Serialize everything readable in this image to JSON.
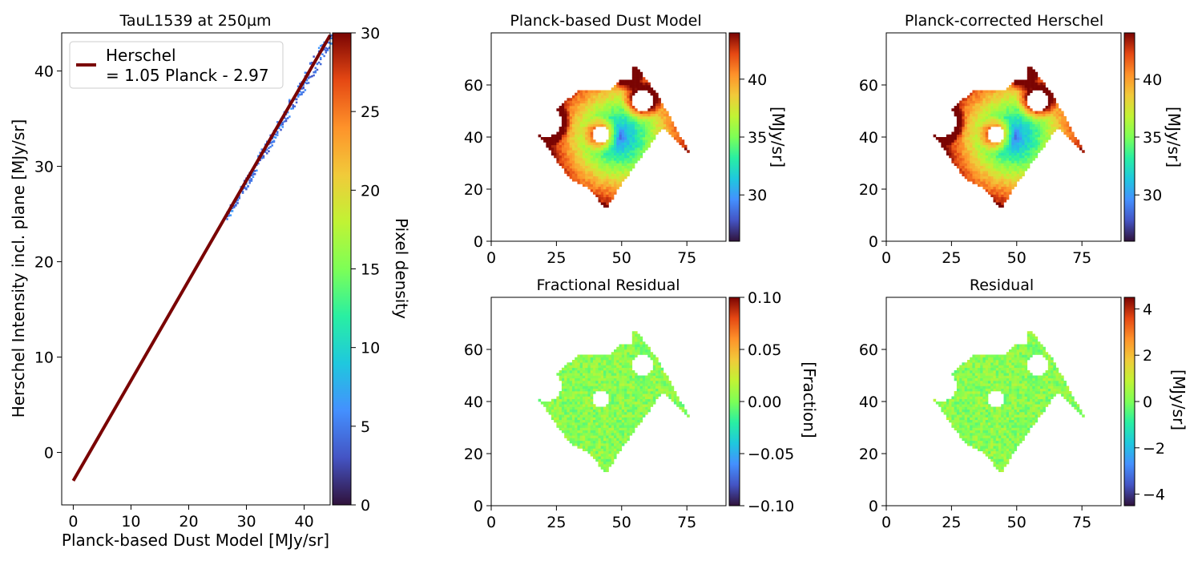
{
  "chart_data": [
    {
      "type": "scatter",
      "title": "TauL1539 at 250µm",
      "xlabel": "Planck-based Dust Model [MJy/sr]",
      "ylabel": "Herschel Intensity incl. plane [MJy/sr]",
      "xlim": [
        -2,
        44.5
      ],
      "ylim": [
        -5.5,
        44
      ],
      "xticks": [
        0,
        10,
        20,
        30,
        40
      ],
      "yticks": [
        0,
        10,
        20,
        30,
        40
      ],
      "fit": {
        "slope": 1.05,
        "intercept": -2.97,
        "x_range": [
          0,
          44.5
        ],
        "color": "#7a0403"
      },
      "legend": {
        "line1": "Herschel",
        "line2": "= 1.05 Planck - 2.97",
        "loc": "upper left"
      },
      "density_points": {
        "x_range": [
          26.5,
          44.5
        ],
        "spread": 0.55,
        "colormap": "turbo"
      },
      "colorbar": {
        "label": "Pixel density",
        "range": [
          0,
          30
        ],
        "ticks": [
          0,
          5,
          10,
          15,
          20,
          25,
          30
        ],
        "colormap": "turbo"
      }
    },
    {
      "type": "heatmap",
      "title": "Planck-based Dust Model",
      "xlim": [
        0,
        90
      ],
      "ylim": [
        0,
        80
      ],
      "xticks": [
        0,
        25,
        50,
        75
      ],
      "yticks": [
        0,
        20,
        40,
        60
      ],
      "colorbar": {
        "label": "[MJy/sr]",
        "range": [
          26,
          44
        ],
        "ticks": [
          "30",
          "35",
          "40"
        ],
        "colormap": "turbo"
      }
    },
    {
      "type": "heatmap",
      "title": "Planck-corrected Herschel",
      "xlim": [
        0,
        90
      ],
      "ylim": [
        0,
        80
      ],
      "xticks": [
        0,
        25,
        50,
        75
      ],
      "yticks": [
        0,
        20,
        40,
        60
      ],
      "colorbar": {
        "label": "[MJy/sr]",
        "range": [
          26,
          44
        ],
        "ticks": [
          "30",
          "35",
          "40"
        ],
        "colormap": "turbo"
      }
    },
    {
      "type": "heatmap",
      "title": "Fractional Residual",
      "xlim": [
        0,
        90
      ],
      "ylim": [
        0,
        80
      ],
      "xticks": [
        0,
        25,
        50,
        75
      ],
      "yticks": [
        0,
        20,
        40,
        60
      ],
      "colorbar": {
        "label": "[Fraction]",
        "range": [
          -0.1,
          0.1
        ],
        "ticks": [
          "−0.10",
          "−0.05",
          "0.00",
          "0.05",
          "0.10"
        ],
        "colormap": "turbo"
      }
    },
    {
      "type": "heatmap",
      "title": "Residual",
      "xlim": [
        0,
        90
      ],
      "ylim": [
        0,
        80
      ],
      "xticks": [
        0,
        25,
        50,
        75
      ],
      "yticks": [
        0,
        20,
        40,
        60
      ],
      "colorbar": {
        "label": "[MJy/sr]",
        "range": [
          -4.5,
          4.5
        ],
        "ticks": [
          "−4",
          "−2",
          "0",
          "2",
          "4"
        ],
        "colormap": "turbo"
      }
    }
  ],
  "map_region": {
    "polygon": [
      [
        44,
        12
      ],
      [
        50,
        22
      ],
      [
        66,
        44
      ],
      [
        76,
        34
      ],
      [
        64,
        56
      ],
      [
        55,
        68
      ],
      [
        46,
        58
      ],
      [
        34,
        58
      ],
      [
        16,
        44
      ],
      [
        30,
        24
      ],
      [
        38,
        20
      ]
    ],
    "holes": [
      {
        "cx": 21,
        "cy": 46,
        "r": 6
      },
      {
        "cx": 42,
        "cy": 41,
        "r": 3.5
      },
      {
        "cx": 58,
        "cy": 54,
        "r": 4
      },
      {
        "cx": 52,
        "cy": 64,
        "r": 2.5
      }
    ],
    "intensity_range": [
      26,
      44
    ],
    "residual_level": 0.02
  }
}
